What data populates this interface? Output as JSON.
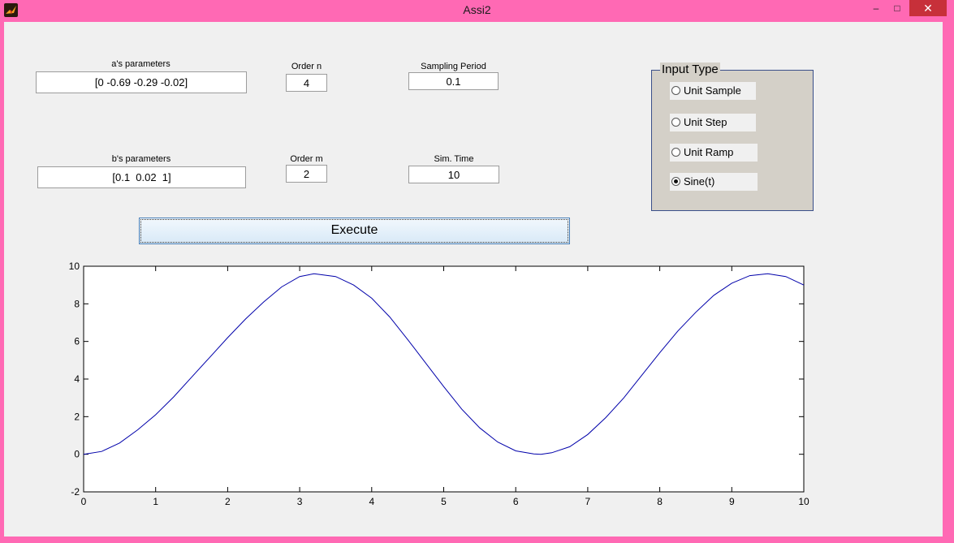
{
  "window": {
    "title": "Assi2",
    "minimize_label": "–",
    "maximize_label": "□",
    "close_label": "✕",
    "icon": "matlab-icon"
  },
  "form": {
    "a_params": {
      "label": "a's parameters",
      "value": "[0 -0.69 -0.29 -0.02]"
    },
    "order_n": {
      "label": "Order n",
      "value": "4"
    },
    "sampling_period": {
      "label": "Sampling Period",
      "value": "0.1"
    },
    "b_params": {
      "label": "b's parameters",
      "value": "[0.1  0.02  1]"
    },
    "order_m": {
      "label": "Order m",
      "value": "2"
    },
    "sim_time": {
      "label": "Sim. Time",
      "value": "10"
    }
  },
  "input_type": {
    "title": "Input Type",
    "options": [
      {
        "label": "Unit Sample",
        "selected": false
      },
      {
        "label": "Unit Step",
        "selected": false
      },
      {
        "label": "Unit Ramp",
        "selected": false
      },
      {
        "label": "Sine(t)",
        "selected": true
      }
    ]
  },
  "execute_label": "Execute",
  "chart_data": {
    "type": "line",
    "title": "",
    "xlabel": "",
    "ylabel": "",
    "xlim": [
      0,
      10
    ],
    "ylim": [
      -2,
      10
    ],
    "x_ticks": [
      "0",
      "1",
      "2",
      "3",
      "4",
      "5",
      "6",
      "7",
      "8",
      "9",
      "10"
    ],
    "y_ticks": [
      "-2",
      "0",
      "2",
      "4",
      "6",
      "8",
      "10"
    ],
    "grid": false,
    "series": [
      {
        "color": "#0000aa",
        "x": [
          0,
          0.25,
          0.5,
          0.75,
          1,
          1.25,
          1.5,
          1.75,
          2,
          2.25,
          2.5,
          2.75,
          3,
          3.2,
          3.5,
          3.75,
          4,
          4.25,
          4.5,
          4.75,
          5,
          5.25,
          5.5,
          5.75,
          6,
          6.25,
          6.35,
          6.5,
          6.75,
          7,
          7.25,
          7.5,
          7.75,
          8,
          8.25,
          8.5,
          8.75,
          9,
          9.25,
          9.5,
          9.75,
          10
        ],
        "y": [
          0,
          0.15,
          0.6,
          1.3,
          2.1,
          3.05,
          4.1,
          5.15,
          6.2,
          7.2,
          8.1,
          8.9,
          9.45,
          9.6,
          9.45,
          9.0,
          8.3,
          7.3,
          6.1,
          4.85,
          3.6,
          2.4,
          1.4,
          0.65,
          0.18,
          0.02,
          0,
          0.08,
          0.4,
          1.05,
          1.95,
          3.0,
          4.2,
          5.4,
          6.55,
          7.55,
          8.45,
          9.1,
          9.5,
          9.6,
          9.45,
          9.0
        ]
      }
    ]
  }
}
